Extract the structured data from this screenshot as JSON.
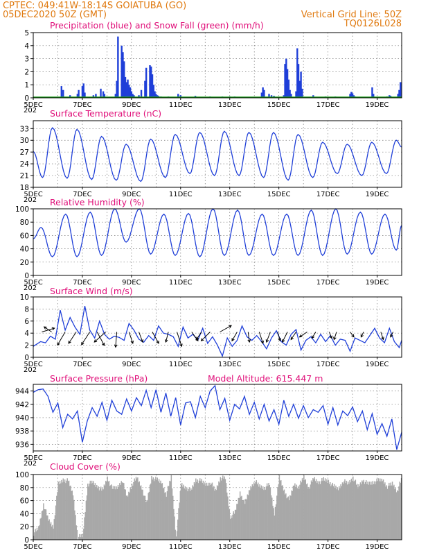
{
  "header": {
    "station": "CPTEC:   049:41W-18:14S   GOIATUBA (GO)",
    "run": "05DEC2020 50Z (GMT)",
    "grid_note": "Vertical Grid Line: 50Z",
    "code": "TQ0126L028"
  },
  "colors": {
    "header": "#e07a10",
    "title": "#e0107a",
    "line": "#1f3fd8",
    "precip": "#1f3fd8",
    "snow": "#1aa01a",
    "cloud": "#a8a8a8",
    "wind_arrow": "#000000"
  },
  "x_axis": {
    "range_days": [
      5,
      20
    ],
    "ticks": [
      {
        "day": 5,
        "label": "5DEC"
      },
      {
        "day": 7,
        "label": "7DEC"
      },
      {
        "day": 9,
        "label": "9DEC"
      },
      {
        "day": 11,
        "label": "11DEC"
      },
      {
        "day": 13,
        "label": "13DEC"
      },
      {
        "day": 15,
        "label": "15DEC"
      },
      {
        "day": 17,
        "label": "17DEC"
      },
      {
        "day": 19,
        "label": "19DEC"
      }
    ],
    "stub": "202"
  },
  "chart_data": [
    {
      "type": "bar",
      "title": "Precipitation (blue) and Snow Fall (green) (mm/h)",
      "ylim": [
        0,
        5
      ],
      "yticks": [
        0,
        1,
        2,
        3,
        4,
        5
      ],
      "series": [
        {
          "name": "Precipitation",
          "x_day": [
            6.15,
            6.22,
            6.5,
            6.8,
            6.85,
            7.0,
            7.05,
            7.1,
            7.45,
            7.55,
            7.75,
            7.85,
            7.9,
            8.35,
            8.4,
            8.45,
            8.6,
            8.65,
            8.7,
            8.75,
            8.8,
            8.85,
            8.9,
            8.95,
            9.0,
            9.05,
            9.1,
            9.3,
            9.4,
            9.55,
            9.6,
            9.75,
            9.8,
            9.85,
            9.9,
            9.95,
            10.0,
            10.05,
            10.1,
            10.2,
            10.5,
            10.9,
            11.0,
            11.6,
            12.2,
            12.7,
            13.0,
            13.2,
            14.3,
            14.35,
            14.4,
            14.6,
            14.7,
            14.8,
            15.2,
            15.25,
            15.3,
            15.35,
            15.4,
            15.45,
            15.5,
            15.7,
            15.75,
            15.8,
            15.85,
            15.9,
            15.95,
            16.4,
            16.9,
            17.3,
            17.9,
            17.95,
            18.0,
            18.05,
            18.1,
            18.8,
            18.85,
            19.4,
            19.5,
            19.55,
            19.85,
            19.9,
            19.95
          ],
          "values": [
            0.9,
            0.6,
            0.2,
            0.3,
            0.6,
            0.9,
            1.1,
            0.4,
            0.2,
            0.3,
            0.7,
            0.5,
            0.3,
            0.3,
            1.3,
            4.7,
            4.0,
            3.5,
            2.8,
            1.6,
            1.2,
            1.4,
            1.0,
            0.8,
            0.5,
            0.3,
            0.2,
            0.2,
            0.6,
            1.3,
            2.3,
            2.5,
            2.4,
            1.8,
            1.0,
            0.5,
            0.3,
            0.2,
            0.15,
            0.1,
            0.1,
            0.3,
            0.2,
            0.15,
            0.1,
            0.1,
            0.1,
            0.1,
            0.4,
            0.8,
            0.6,
            0.3,
            0.2,
            0.15,
            0.2,
            2.6,
            3.0,
            2.2,
            1.4,
            0.6,
            0.3,
            0.5,
            3.8,
            2.6,
            1.3,
            2.0,
            0.7,
            0.2,
            0.1,
            0.1,
            0.3,
            0.45,
            0.35,
            0.2,
            0.1,
            0.8,
            0.3,
            0.1,
            0.2,
            0.15,
            0.3,
            0.6,
            1.2
          ]
        },
        {
          "name": "Snow Fall",
          "values": [
            0
          ]
        }
      ]
    },
    {
      "type": "line",
      "title": "Surface Temperature (nC)",
      "ylim": [
        18,
        35
      ],
      "yticks": [
        18,
        21,
        24,
        27,
        30,
        33
      ],
      "daily_max": [
        33.2,
        32.8,
        31.0,
        29.0,
        30.3,
        31.5,
        32.0,
        32.3,
        32.0,
        32.0,
        31.5,
        29.5,
        29.0,
        29.5,
        30.0
      ],
      "daily_min": [
        20.5,
        20.3,
        20.0,
        19.8,
        19.5,
        20.5,
        21.5,
        21.0,
        21.0,
        20.5,
        19.8,
        20.5,
        21.5,
        21.0,
        21.5
      ],
      "end_value": 28.3
    },
    {
      "type": "line",
      "title": "Relative Humidity (%)",
      "ylim": [
        0,
        100
      ],
      "yticks": [
        0,
        20,
        40,
        60,
        80,
        100
      ],
      "daily_max": [
        72,
        92,
        95,
        100,
        100,
        92,
        93,
        100,
        98,
        92,
        92,
        98,
        100,
        95,
        92
      ],
      "daily_min": [
        28,
        28,
        30,
        50,
        32,
        30,
        28,
        30,
        30,
        30,
        30,
        30,
        32,
        32,
        38
      ],
      "end_value": 75
    },
    {
      "type": "line",
      "title": "Surface Wind (m/s)",
      "ylim": [
        0,
        10
      ],
      "yticks": [
        0,
        2,
        4,
        6,
        8,
        10
      ],
      "x_day": [
        5.0,
        5.3,
        5.5,
        5.7,
        5.9,
        6.1,
        6.3,
        6.5,
        6.7,
        6.9,
        7.1,
        7.3,
        7.5,
        7.7,
        7.9,
        8.1,
        8.3,
        8.5,
        8.7,
        8.9,
        9.1,
        9.3,
        9.5,
        9.7,
        9.9,
        10.1,
        10.3,
        10.5,
        10.7,
        10.9,
        11.1,
        11.3,
        11.5,
        11.7,
        11.9,
        12.1,
        12.3,
        12.5,
        12.7,
        12.9,
        13.1,
        13.3,
        13.5,
        13.7,
        13.9,
        14.1,
        14.3,
        14.5,
        14.7,
        14.9,
        15.1,
        15.3,
        15.5,
        15.7,
        15.9,
        16.1,
        16.3,
        16.5,
        16.7,
        16.9,
        17.1,
        17.3,
        17.5,
        17.7,
        17.9,
        18.1,
        18.3,
        18.5,
        18.7,
        18.9,
        19.1,
        19.3,
        19.5,
        19.7,
        19.9,
        20.0
      ],
      "values": [
        1.8,
        2.6,
        2.4,
        3.5,
        3.0,
        7.8,
        4.5,
        6.6,
        5.0,
        3.8,
        8.5,
        4.5,
        3.2,
        6.0,
        3.8,
        3.0,
        3.5,
        3.3,
        2.8,
        5.6,
        4.5,
        3.0,
        2.5,
        3.6,
        2.8,
        5.2,
        4.0,
        3.8,
        3.4,
        1.8,
        5.0,
        3.2,
        3.8,
        2.8,
        4.8,
        2.3,
        3.4,
        2.0,
        0.2,
        3.2,
        1.8,
        2.8,
        5.2,
        3.4,
        2.8,
        3.6,
        2.6,
        1.4,
        3.2,
        4.4,
        2.6,
        2.0,
        3.8,
        4.6,
        1.2,
        2.8,
        3.4,
        2.4,
        3.8,
        2.6,
        3.6,
        2.0,
        3.0,
        2.8,
        1.0,
        3.2,
        2.8,
        2.4,
        3.6,
        4.8,
        3.2,
        2.4,
        4.8,
        2.6,
        1.6,
        2.8
      ],
      "arrows": [
        {
          "day": 5.35,
          "u": 1.0,
          "v": 0.3
        },
        {
          "day": 5.75,
          "u": -0.6,
          "v": 0.4
        },
        {
          "day": 6.3,
          "u": -1.0,
          "v": -1.7
        },
        {
          "day": 6.75,
          "u": -0.6,
          "v": -0.9
        },
        {
          "day": 7.3,
          "u": -0.9,
          "v": -1.4
        },
        {
          "day": 7.6,
          "u": 0.8,
          "v": -1.5
        },
        {
          "day": 7.95,
          "u": -0.9,
          "v": -0.8
        },
        {
          "day": 8.4,
          "u": -0.1,
          "v": -1.3
        },
        {
          "day": 8.9,
          "u": 0.3,
          "v": -0.9
        },
        {
          "day": 9.3,
          "u": 0.3,
          "v": -0.8
        },
        {
          "day": 9.85,
          "u": 0.5,
          "v": -0.9
        },
        {
          "day": 10.5,
          "u": -0.2,
          "v": -0.8
        },
        {
          "day": 10.85,
          "u": 0.4,
          "v": -1.2
        },
        {
          "day": 11.45,
          "u": 0.5,
          "v": -0.7
        },
        {
          "day": 11.85,
          "u": -0.4,
          "v": -0.6
        },
        {
          "day": 12.2,
          "u": -0.7,
          "v": -0.7
        },
        {
          "day": 12.6,
          "u": 0.9,
          "v": 0.5
        },
        {
          "day": 13.3,
          "u": -0.4,
          "v": -0.7
        },
        {
          "day": 13.75,
          "u": 0.1,
          "v": -0.8
        },
        {
          "day": 14.2,
          "u": 0.3,
          "v": -0.9
        },
        {
          "day": 14.65,
          "u": -0.3,
          "v": -0.8
        },
        {
          "day": 14.95,
          "u": 0.2,
          "v": -0.7
        },
        {
          "day": 15.35,
          "u": -0.4,
          "v": -0.8
        },
        {
          "day": 15.7,
          "u": -0.4,
          "v": -0.6
        },
        {
          "day": 16.15,
          "u": -0.6,
          "v": -0.4
        },
        {
          "day": 16.5,
          "u": -0.3,
          "v": -0.5
        },
        {
          "day": 17.05,
          "u": 0.2,
          "v": -0.5
        },
        {
          "day": 17.35,
          "u": -0.2,
          "v": -0.6
        },
        {
          "day": 17.9,
          "u": 0.3,
          "v": -0.4
        },
        {
          "day": 18.45,
          "u": -0.2,
          "v": -0.4
        },
        {
          "day": 19.15,
          "u": 0.2,
          "v": -0.6
        },
        {
          "day": 19.65,
          "u": -0.2,
          "v": -0.4
        }
      ]
    },
    {
      "type": "line",
      "title": "Surface Pressure (hPa)",
      "altitude_label": "Model Altitude: 615.447  m",
      "ylim": [
        935,
        945
      ],
      "yticks": [
        936,
        938,
        940,
        942,
        944
      ],
      "x_day": [
        5.0,
        5.2,
        5.4,
        5.6,
        5.8,
        6.0,
        6.2,
        6.4,
        6.6,
        6.8,
        7.0,
        7.2,
        7.4,
        7.6,
        7.8,
        8.0,
        8.2,
        8.4,
        8.6,
        8.8,
        9.0,
        9.2,
        9.4,
        9.6,
        9.8,
        10.0,
        10.2,
        10.4,
        10.6,
        10.8,
        11.0,
        11.2,
        11.4,
        11.6,
        11.8,
        12.0,
        12.2,
        12.4,
        12.6,
        12.8,
        13.0,
        13.2,
        13.4,
        13.6,
        13.8,
        14.0,
        14.2,
        14.4,
        14.6,
        14.8,
        15.0,
        15.2,
        15.4,
        15.6,
        15.8,
        16.0,
        16.2,
        16.4,
        16.6,
        16.8,
        17.0,
        17.2,
        17.4,
        17.6,
        17.8,
        18.0,
        18.2,
        18.4,
        18.6,
        18.8,
        19.0,
        19.2,
        19.4,
        19.6,
        19.8,
        20.0
      ],
      "values": [
        943.8,
        944.2,
        944.3,
        943.2,
        940.8,
        942.2,
        938.5,
        940.5,
        939.8,
        941.0,
        936.3,
        939.5,
        941.5,
        940.2,
        942.3,
        939.6,
        942.6,
        941.0,
        940.5,
        942.8,
        941.0,
        943.0,
        941.8,
        944.1,
        941.5,
        944.2,
        940.8,
        943.7,
        940.2,
        943.0,
        938.9,
        942.2,
        942.4,
        940.0,
        943.2,
        941.5,
        944.0,
        944.8,
        941.2,
        942.9,
        939.6,
        942.0,
        941.3,
        943.2,
        940.5,
        942.3,
        939.8,
        942.0,
        939.5,
        941.2,
        939.0,
        942.6,
        940.2,
        942.0,
        939.9,
        941.8,
        940.0,
        941.2,
        940.8,
        941.8,
        939.0,
        941.5,
        938.9,
        941.0,
        940.3,
        941.6,
        939.4,
        941.0,
        938.2,
        940.6,
        937.5,
        939.1,
        937.2,
        939.8,
        935.2,
        937.8
      ]
    },
    {
      "type": "area",
      "title": "Cloud Cover (%)",
      "ylim": [
        0,
        100
      ],
      "yticks": [
        0,
        20,
        40,
        60,
        80,
        100
      ],
      "x_day": [
        5.0,
        5.2,
        5.4,
        5.6,
        5.8,
        6.0,
        6.2,
        6.4,
        6.6,
        6.8,
        7.0,
        7.2,
        7.4,
        7.6,
        7.8,
        8.0,
        8.2,
        8.4,
        8.6,
        8.8,
        9.0,
        9.2,
        9.4,
        9.6,
        9.8,
        10.0,
        10.2,
        10.4,
        10.6,
        10.8,
        11.0,
        11.2,
        11.4,
        11.6,
        11.8,
        12.0,
        12.2,
        12.4,
        12.6,
        12.8,
        13.0,
        13.2,
        13.4,
        13.6,
        13.8,
        14.0,
        14.2,
        14.4,
        14.6,
        14.8,
        15.0,
        15.2,
        15.4,
        15.6,
        15.8,
        16.0,
        16.2,
        16.4,
        16.6,
        16.8,
        17.0,
        17.2,
        17.4,
        17.6,
        17.8,
        18.0,
        18.2,
        18.4,
        18.6,
        18.8,
        19.0,
        19.2,
        19.4,
        19.6,
        19.8,
        20.0
      ],
      "values": [
        10,
        18,
        55,
        30,
        20,
        85,
        92,
        90,
        70,
        4,
        6,
        85,
        88,
        82,
        75,
        95,
        78,
        80,
        92,
        65,
        85,
        95,
        80,
        55,
        96,
        92,
        88,
        70,
        96,
        4,
        85,
        80,
        75,
        92,
        90,
        85,
        88,
        75,
        95,
        94,
        35,
        42,
        72,
        55,
        78,
        90,
        82,
        80,
        85,
        40,
        95,
        75,
        60,
        85,
        82,
        96,
        80,
        94,
        88,
        92,
        90,
        82,
        78,
        90,
        86,
        96,
        80,
        92,
        85,
        88,
        90,
        92,
        82,
        86,
        75,
        95
      ]
    }
  ],
  "figure_colors_note": ""
}
